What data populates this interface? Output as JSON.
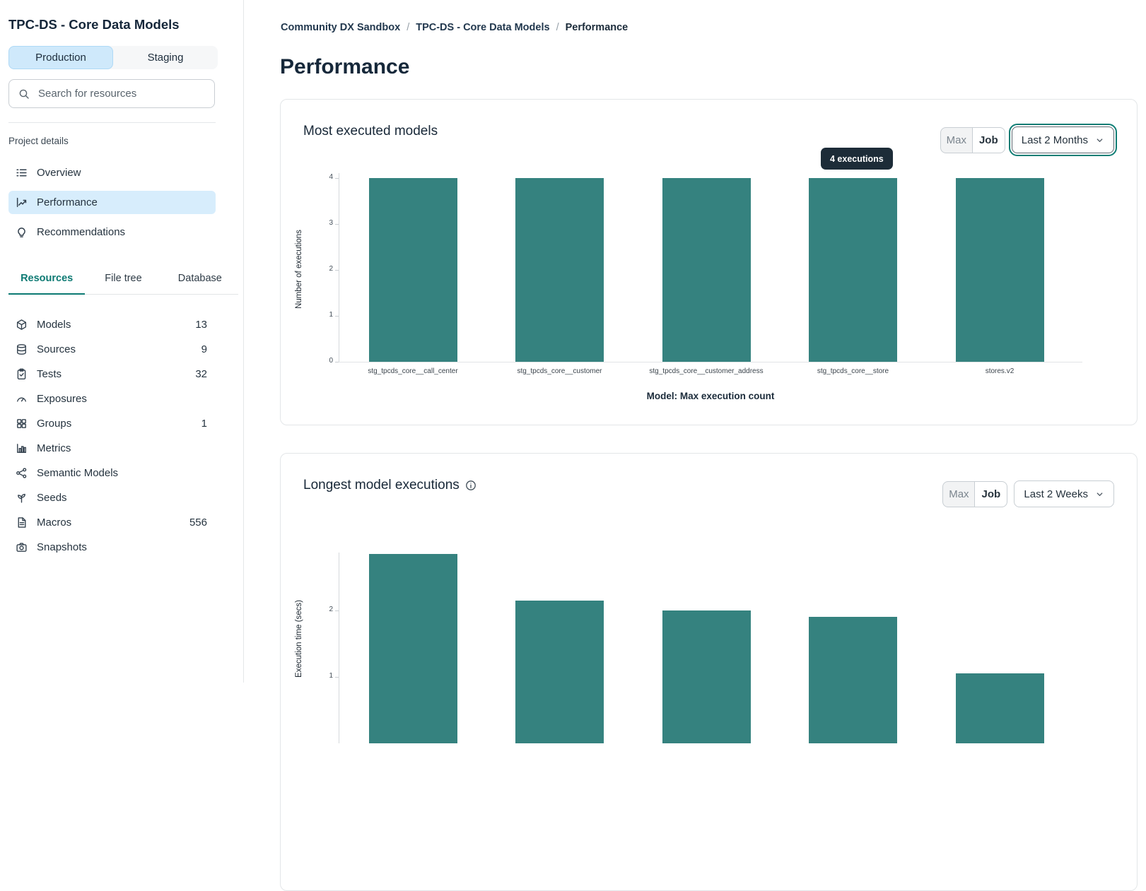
{
  "sidebar": {
    "project_title": "TPC-DS - Core Data Models",
    "environments": {
      "production": "Production",
      "staging": "Staging",
      "selected": "Production"
    },
    "search_placeholder": "Search for resources",
    "section_label": "Project details",
    "nav": [
      {
        "label": "Overview",
        "icon": "list-icon",
        "active": false
      },
      {
        "label": "Performance",
        "icon": "line-chart-icon",
        "active": true
      },
      {
        "label": "Recommendations",
        "icon": "lightbulb-icon",
        "active": false
      }
    ],
    "tabs": [
      {
        "label": "Resources",
        "active": true
      },
      {
        "label": "File tree",
        "active": false
      },
      {
        "label": "Database",
        "active": false
      }
    ],
    "resources": [
      {
        "label": "Models",
        "count": "13",
        "icon": "cube-icon"
      },
      {
        "label": "Sources",
        "count": "9",
        "icon": "database-icon"
      },
      {
        "label": "Tests",
        "count": "32",
        "icon": "clipboard-check-icon"
      },
      {
        "label": "Exposures",
        "count": "",
        "icon": "gauge-icon"
      },
      {
        "label": "Groups",
        "count": "1",
        "icon": "grid-icon"
      },
      {
        "label": "Metrics",
        "count": "",
        "icon": "bar-chart-icon"
      },
      {
        "label": "Semantic Models",
        "count": "",
        "icon": "nodes-icon"
      },
      {
        "label": "Seeds",
        "count": "",
        "icon": "sprout-icon"
      },
      {
        "label": "Macros",
        "count": "556",
        "icon": "file-icon"
      },
      {
        "label": "Snapshots",
        "count": "",
        "icon": "camera-icon"
      }
    ]
  },
  "breadcrumb": {
    "items": [
      "Community DX Sandbox",
      "TPC-DS - Core Data Models",
      "Performance"
    ],
    "separator": "/"
  },
  "page_title": "Performance",
  "chart_data": [
    {
      "type": "bar",
      "title": "Most executed models",
      "categories": [
        "stg_tpcds_core__call_center",
        "stg_tpcds_core__customer",
        "stg_tpcds_core__customer_address",
        "stg_tpcds_core__store",
        "stores.v2"
      ],
      "values": [
        4,
        4,
        4,
        4,
        4
      ],
      "xlabel": "Model: Max execution count",
      "ylabel": "Number of executions",
      "ylim": [
        0,
        4
      ],
      "yticks": [
        0,
        1,
        2,
        3,
        4
      ],
      "grid": false,
      "legend_position": "none",
      "bar_color": "#35827F",
      "tooltip": {
        "text": "4 executions",
        "target_category": "stg_tpcds_core__store"
      },
      "controls": {
        "toggle": [
          "Max",
          "Job"
        ],
        "active_toggle": "Job",
        "time_range": "Last 2 Months",
        "range_focused": true
      }
    },
    {
      "type": "bar",
      "title": "Longest model executions",
      "categories": [],
      "values": [
        2.85,
        2.15,
        2.0,
        1.9,
        1.05
      ],
      "ylabel": "Execution time (secs)",
      "yticks": [
        1,
        2
      ],
      "grid": false,
      "legend_position": "none",
      "bar_color": "#35827F",
      "controls": {
        "toggle": [
          "Max",
          "Job"
        ],
        "active_toggle": "Job",
        "time_range": "Last 2 Weeks",
        "range_focused": false
      }
    }
  ]
}
